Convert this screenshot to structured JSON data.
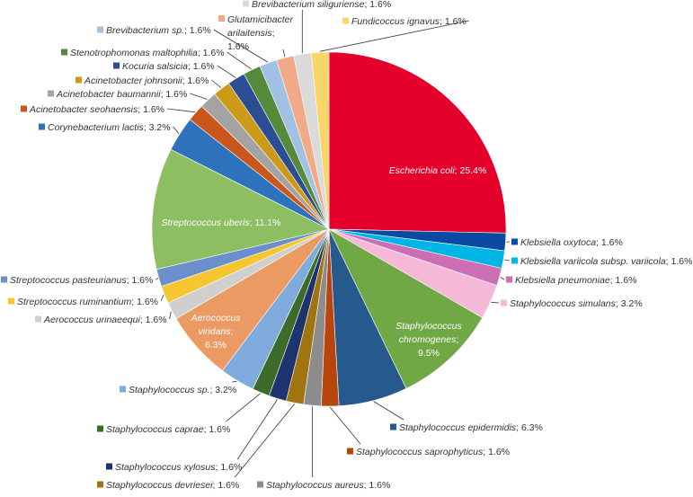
{
  "chart_data": {
    "type": "pie",
    "title": "",
    "legend": "none",
    "slices": [
      {
        "species": "Escherichia coli",
        "suffix": "; 25.4%",
        "value": 25.4,
        "color": "#e4002b"
      },
      {
        "species": "Klebsiella oxytoca",
        "suffix": "; 1.6%",
        "value": 1.6,
        "color": "#0b4aa2"
      },
      {
        "species": "Klebsiella variicola subsp. variicola",
        "suffix": "; 1.6%",
        "value": 1.6,
        "color": "#00b4e6"
      },
      {
        "species": "Klebsiella pneumoniae",
        "suffix": "; 1.6%",
        "value": 1.6,
        "color": "#cc6eb4"
      },
      {
        "species": "Staphylococcus simulans",
        "suffix": "; 3.2%",
        "value": 3.2,
        "color": "#f5b9d7"
      },
      {
        "species": "Staphylococcus chromogenes",
        "suffix": "; 9.5%",
        "value": 9.5,
        "color": "#6fa844"
      },
      {
        "species": "Staphylococcus epidermidis",
        "suffix": "; 6.3%",
        "value": 6.3,
        "color": "#26598c"
      },
      {
        "species": "Staphylococcus saprophyticus",
        "suffix": "; 1.6%",
        "value": 1.6,
        "color": "#b8450e"
      },
      {
        "species": "Staphylococcus aureus",
        "suffix": "; 1.6%",
        "value": 1.6,
        "color": "#8c8c8c"
      },
      {
        "species": "Staphylococcus devriesei",
        "suffix": "; 1.6%",
        "value": 1.6,
        "color": "#a07410"
      },
      {
        "species": "Staphylococcus xylosus",
        "suffix": "; 1.6%",
        "value": 1.6,
        "color": "#1e3470"
      },
      {
        "species": "Staphylococcus caprae",
        "suffix": "; 1.6%",
        "value": 1.6,
        "color": "#3d6b2a"
      },
      {
        "species": "Staphylococcus sp.",
        "suffix": "; 3.2%",
        "value": 3.2,
        "color": "#7fabdc"
      },
      {
        "species": "Aerococcus viridans",
        "suffix": "; 6.3%",
        "value": 6.3,
        "color": "#ec9a64"
      },
      {
        "species": "Aerococcus urinaeequi",
        "suffix": "; 1.6%",
        "value": 1.6,
        "color": "#cfcfcf"
      },
      {
        "species": "Streptococcus ruminantium",
        "suffix": "; 1.6%",
        "value": 1.6,
        "color": "#f6c631"
      },
      {
        "species": "Streptococcus pasteurianus",
        "suffix": "; 1.6%",
        "value": 1.6,
        "color": "#6b8fcc"
      },
      {
        "species": "Streptococcus uberis",
        "suffix": "; 11.1%",
        "value": 11.1,
        "color": "#8dbf62"
      },
      {
        "species": "Corynebacterium lactis",
        "suffix": "; 3.2%",
        "value": 3.2,
        "color": "#2e72bb"
      },
      {
        "species": "Acinetobacter seohaensis",
        "suffix": "; 1.6%",
        "value": 1.6,
        "color": "#c9561c"
      },
      {
        "species": "Acinetobacter baumannii",
        "suffix": "; 1.6%",
        "value": 1.6,
        "color": "#a3a3a3"
      },
      {
        "species": "Acinetobacter johnsonii",
        "suffix": "; 1.6%",
        "value": 1.6,
        "color": "#cc9a18"
      },
      {
        "species": "Kocuria salsicia",
        "suffix": "; 1.6%",
        "value": 1.6,
        "color": "#2b4d93"
      },
      {
        "species": "Stenotrophomonas maltophilia",
        "suffix": "; 1.6%",
        "value": 1.6,
        "color": "#558a3a"
      },
      {
        "species": "Brevibacterium sp.",
        "suffix": "; 1.6%",
        "value": 1.6,
        "color": "#a2c0e4"
      },
      {
        "species": "Glutamicibacter arilaitensis",
        "suffix": "; 1.6%",
        "value": 1.6,
        "color": "#f0aa88"
      },
      {
        "species": "Brevibacterium siliguriense",
        "suffix": "; 1.6%",
        "value": 1.6,
        "color": "#dadada"
      },
      {
        "species": "Fundicoccus ignavus",
        "suffix": "; 1.6%",
        "value": 1.6,
        "color": "#f9d66a"
      }
    ]
  }
}
